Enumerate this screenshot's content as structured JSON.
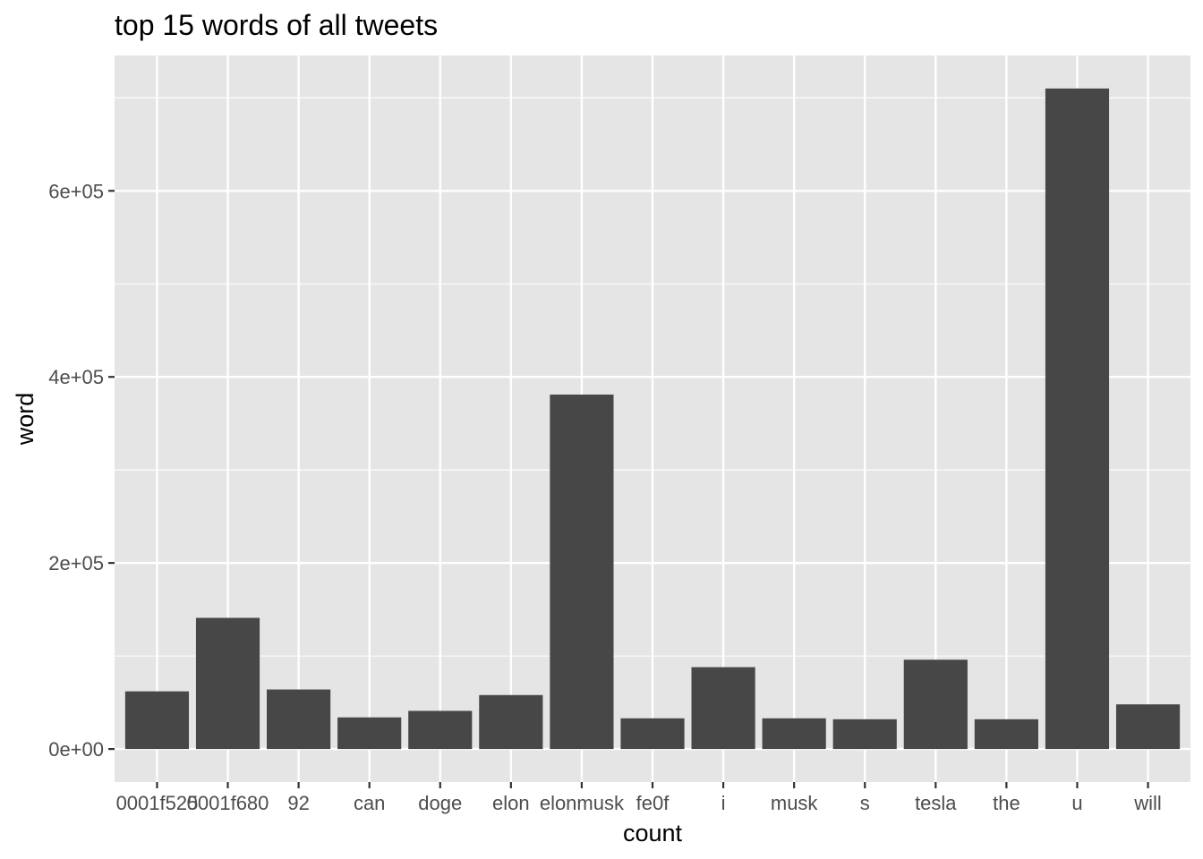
{
  "chart_data": {
    "type": "bar",
    "title": "top 15 words of all tweets",
    "xlabel": "count",
    "ylabel": "word",
    "categories": [
      "0001f525",
      "0001f680",
      "92",
      "can",
      "doge",
      "elon",
      "elonmusk",
      "fe0f",
      "i",
      "musk",
      "s",
      "tesla",
      "the",
      "u",
      "will"
    ],
    "values": [
      62000,
      141000,
      64000,
      34000,
      41000,
      58000,
      381000,
      33000,
      88000,
      33000,
      32000,
      96000,
      32000,
      710000,
      48000
    ],
    "yticks": [
      0,
      200000,
      400000,
      600000
    ],
    "ytick_labels": [
      "0e+00",
      "2e+05",
      "4e+05",
      "6e+05"
    ],
    "ylim": [
      -35500,
      745500
    ],
    "grid": true,
    "colors": {
      "bar": "#474747",
      "panel": "#e5e5e5",
      "grid": "#ffffff",
      "tick": "#333333"
    }
  }
}
